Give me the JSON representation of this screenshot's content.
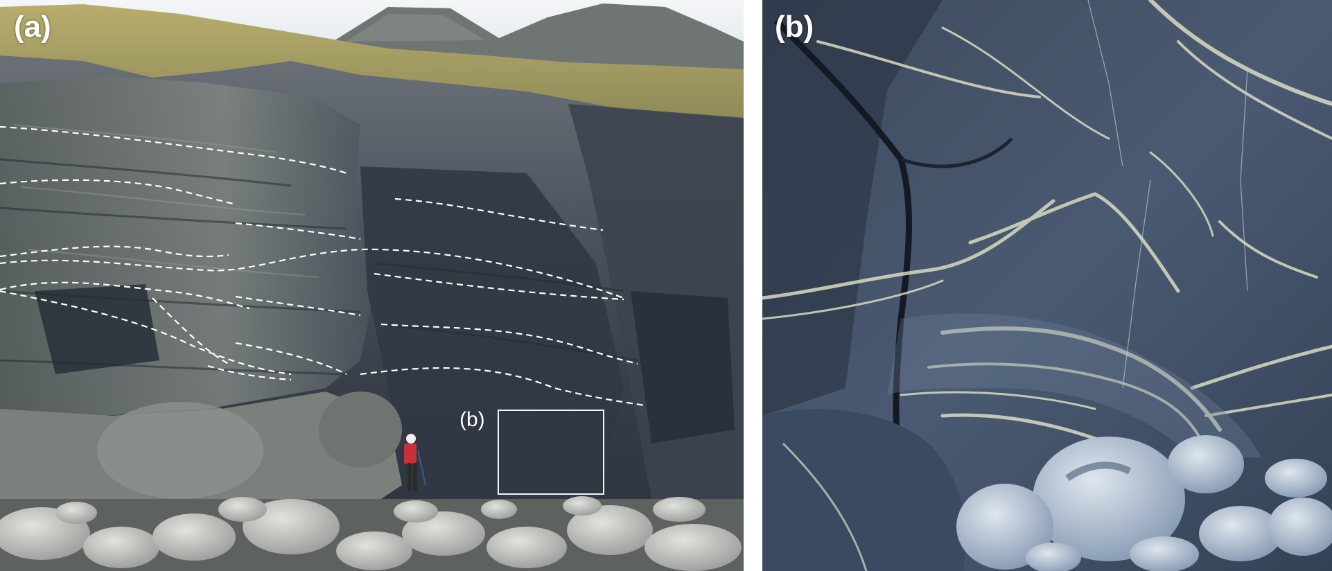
{
  "figure": {
    "panel_a": {
      "label": "(a)",
      "inset_label": "(b)"
    },
    "panel_b": {
      "label": "(b)"
    }
  },
  "colors": {
    "sky": "#e9eef2",
    "grass": "#a89d5c",
    "rock_dark": "#2f3641",
    "rock_mid": "#59606a",
    "rock_light": "#8f9592",
    "boulder": "#c6c8c4",
    "vein": "#d8dcc4",
    "slate_blue": "#3a4b63",
    "dashed_line": "#ffffff"
  }
}
